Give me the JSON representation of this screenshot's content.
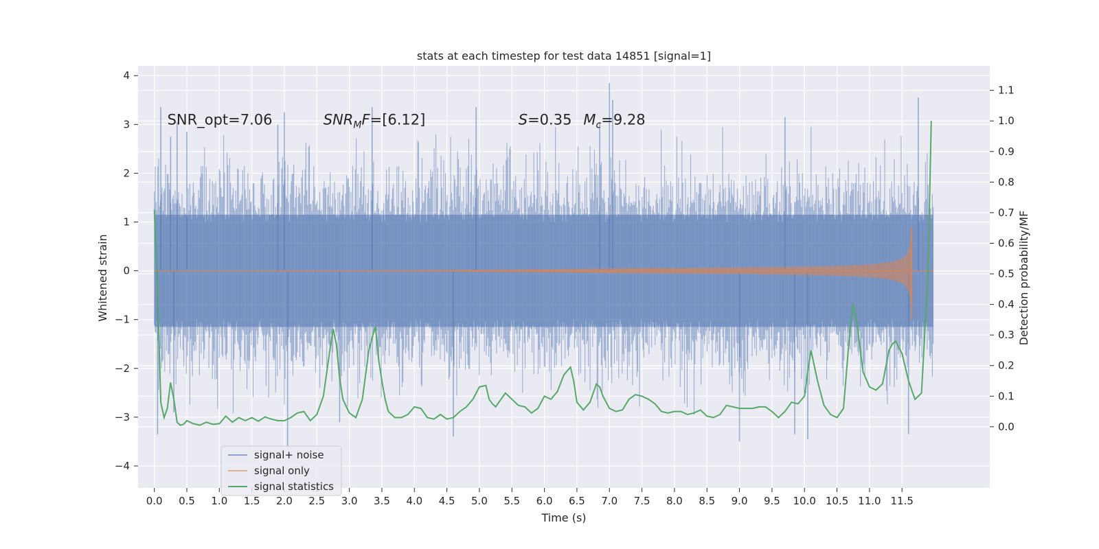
{
  "chart_data": {
    "type": "line",
    "title": "stats at each timestep for test data 14851 [signal=1]",
    "xlabel": "Time (s)",
    "ylabel": "Whitened strain",
    "ylabel_right": "Detection probability/MF",
    "xlim": [
      -0.25,
      12.85
    ],
    "ylim": [
      -4.45,
      4.2
    ],
    "ylim_right": [
      -0.2,
      1.18
    ],
    "xticks": [
      0.0,
      0.5,
      1.0,
      1.5,
      2.0,
      2.5,
      3.0,
      3.5,
      4.0,
      4.5,
      5.0,
      5.5,
      6.0,
      6.5,
      7.0,
      7.5,
      8.0,
      8.5,
      9.0,
      9.5,
      10.0,
      10.5,
      11.0,
      11.5
    ],
    "xtick_labels": [
      "0.0",
      "0.5",
      "1.0",
      "1.5",
      "2.0",
      "2.5",
      "3.0",
      "3.5",
      "4.0",
      "4.5",
      "5.0",
      "5.5",
      "6.0",
      "6.5",
      "7.0",
      "7.5",
      "8.0",
      "8.5",
      "9.0",
      "9.5",
      "10.0",
      "10.5",
      "11.0",
      "11.5"
    ],
    "yticks": [
      -4,
      -3,
      -2,
      -1,
      0,
      1,
      2,
      3,
      4
    ],
    "ytick_labels": [
      "−4",
      "−3",
      "−2",
      "−1",
      "0",
      "1",
      "2",
      "3",
      "4"
    ],
    "yticks_right": [
      0.0,
      0.1,
      0.2,
      0.3,
      0.4,
      0.5,
      0.6,
      0.7,
      0.8,
      0.9,
      1.0,
      1.1
    ],
    "ytick_labels_right": [
      "0.0",
      "0.1",
      "0.2",
      "0.3",
      "0.4",
      "0.5",
      "0.6",
      "0.7",
      "0.8",
      "0.9",
      "1.0",
      "1.1"
    ],
    "grid": true,
    "legend_position": "lower-left",
    "annotations": [
      {
        "text": "SNR_opt=7.06",
        "x": 0.2,
        "y": 3.0,
        "style": "plain"
      },
      {
        "text": "SNR_MF=[6.12]",
        "x": 2.6,
        "y": 3.0,
        "style": "math-snr"
      },
      {
        "text": "S=0.35",
        "x": 5.6,
        "y": 3.0,
        "style": "math-s"
      },
      {
        "text": "M_c=9.28",
        "x": 6.6,
        "y": 3.0,
        "style": "math-mc"
      }
    ],
    "series": [
      {
        "name": "signal+ noise",
        "color": "#4c72b0",
        "axis": "left",
        "kind": "noise-band",
        "t_range": [
          0.0,
          11.98
        ],
        "peaks_x": [
          0.1,
          0.25,
          0.35,
          0.5,
          1.9,
          2.0,
          3.35,
          4.95,
          6.85,
          7.0,
          7.05,
          9.7,
          11.75
        ],
        "peaks_y": [
          3.35,
          2.75,
          3.05,
          2.85,
          3.0,
          3.25,
          3.35,
          3.35,
          3.05,
          3.85,
          3.5,
          3.15,
          3.55
        ],
        "troughs_x": [
          0.05,
          0.3,
          2.05,
          2.85,
          4.6,
          9.0,
          9.85,
          10.05,
          11.6
        ],
        "troughs_y": [
          -3.35,
          -2.9,
          -3.6,
          -3.1,
          -3.4,
          -3.5,
          -3.35,
          -3.45,
          -3.35
        ]
      },
      {
        "name": "signal only",
        "color": "#dd8452",
        "axis": "left",
        "kind": "chirp",
        "t_range": [
          0.0,
          11.98
        ],
        "merger_time": 11.65,
        "peak_amplitude": 0.9,
        "min_value": -1.0
      },
      {
        "name": "signal statistics",
        "color": "#55a868",
        "axis": "right",
        "kind": "line",
        "x": [
          0.0,
          0.05,
          0.1,
          0.15,
          0.2,
          0.25,
          0.3,
          0.35,
          0.4,
          0.45,
          0.5,
          0.6,
          0.7,
          0.8,
          0.9,
          1.0,
          1.1,
          1.2,
          1.3,
          1.4,
          1.5,
          1.6,
          1.7,
          1.8,
          1.9,
          2.0,
          2.1,
          2.2,
          2.3,
          2.4,
          2.5,
          2.6,
          2.7,
          2.75,
          2.8,
          2.85,
          2.9,
          3.0,
          3.1,
          3.2,
          3.3,
          3.4,
          3.45,
          3.5,
          3.55,
          3.6,
          3.7,
          3.8,
          3.9,
          4.0,
          4.1,
          4.2,
          4.3,
          4.4,
          4.5,
          4.6,
          4.7,
          4.8,
          4.9,
          5.0,
          5.1,
          5.15,
          5.2,
          5.25,
          5.3,
          5.4,
          5.5,
          5.6,
          5.7,
          5.8,
          5.9,
          6.0,
          6.1,
          6.2,
          6.3,
          6.4,
          6.45,
          6.5,
          6.6,
          6.7,
          6.8,
          6.85,
          6.9,
          7.0,
          7.1,
          7.2,
          7.3,
          7.4,
          7.5,
          7.6,
          7.7,
          7.8,
          7.9,
          8.0,
          8.1,
          8.2,
          8.3,
          8.4,
          8.5,
          8.6,
          8.7,
          8.8,
          8.9,
          9.0,
          9.1,
          9.2,
          9.3,
          9.4,
          9.5,
          9.6,
          9.7,
          9.8,
          9.9,
          10.0,
          10.05,
          10.1,
          10.2,
          10.3,
          10.4,
          10.5,
          10.6,
          10.7,
          10.75,
          10.8,
          10.9,
          11.0,
          11.1,
          11.2,
          11.3,
          11.35,
          11.4,
          11.5,
          11.6,
          11.7,
          11.8,
          11.9,
          11.95
        ],
        "values": [
          0.71,
          0.45,
          0.08,
          0.03,
          0.06,
          0.145,
          0.09,
          0.015,
          0.005,
          0.008,
          0.02,
          0.01,
          0.005,
          0.015,
          0.008,
          0.01,
          0.035,
          0.015,
          0.03,
          0.02,
          0.03,
          0.018,
          0.032,
          0.025,
          0.02,
          0.02,
          0.03,
          0.045,
          0.05,
          0.02,
          0.04,
          0.1,
          0.25,
          0.32,
          0.27,
          0.16,
          0.09,
          0.045,
          0.03,
          0.09,
          0.25,
          0.33,
          0.22,
          0.15,
          0.09,
          0.05,
          0.03,
          0.03,
          0.04,
          0.065,
          0.06,
          0.03,
          0.025,
          0.04,
          0.025,
          0.03,
          0.05,
          0.065,
          0.09,
          0.13,
          0.135,
          0.09,
          0.075,
          0.065,
          0.08,
          0.11,
          0.09,
          0.07,
          0.065,
          0.045,
          0.06,
          0.1,
          0.09,
          0.115,
          0.17,
          0.195,
          0.15,
          0.08,
          0.055,
          0.08,
          0.14,
          0.13,
          0.1,
          0.06,
          0.05,
          0.055,
          0.09,
          0.105,
          0.1,
          0.09,
          0.075,
          0.05,
          0.045,
          0.05,
          0.05,
          0.04,
          0.045,
          0.055,
          0.035,
          0.03,
          0.04,
          0.07,
          0.065,
          0.06,
          0.06,
          0.06,
          0.065,
          0.065,
          0.05,
          0.03,
          0.05,
          0.08,
          0.075,
          0.1,
          0.18,
          0.25,
          0.15,
          0.07,
          0.04,
          0.03,
          0.06,
          0.32,
          0.4,
          0.35,
          0.18,
          0.13,
          0.12,
          0.14,
          0.25,
          0.27,
          0.28,
          0.24,
          0.15,
          0.09,
          0.11,
          0.5,
          1.0
        ]
      }
    ]
  }
}
